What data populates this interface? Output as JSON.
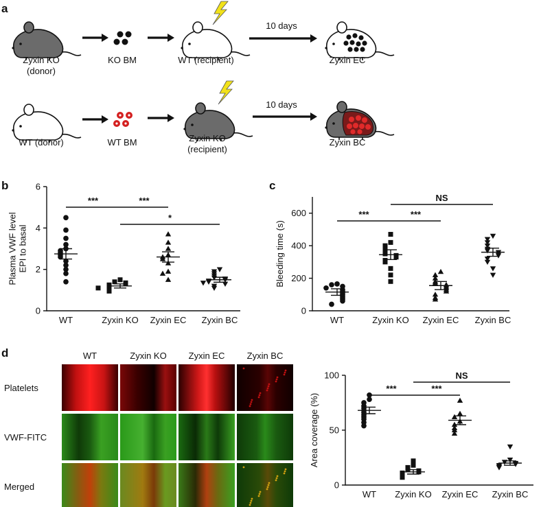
{
  "panel_a": {
    "label": "a",
    "row1": {
      "donor": [
        "Zyxin KO",
        "(donor)"
      ],
      "bm": "KO BM",
      "recipient": [
        "WT (recipient)"
      ],
      "days": "10 days",
      "result": "Zyxin EC"
    },
    "row2": {
      "donor": [
        "WT (donor)"
      ],
      "bm": "WT BM",
      "recipient": [
        "Zyxin KO",
        "(recipient)"
      ],
      "days": "10 days",
      "result": "Zyxin BC"
    },
    "colors": {
      "ko_mouse": "#6b6b6b",
      "wt_mouse": "#ffffff",
      "ko_marrow": "#111111",
      "wt_marrow": "#d42020",
      "bolt": "#f2e21a",
      "bc_fill": "#7a1a1a"
    }
  },
  "panel_b": {
    "label": "b"
  },
  "panel_c": {
    "label": "c"
  },
  "panel_d": {
    "label": "d",
    "columns": [
      "WT",
      "Zyxin KO",
      "Zyxin EC",
      "Zyxin BC"
    ],
    "rows": [
      "Platelets",
      "VWF-FITC",
      "Merged"
    ]
  },
  "chart_data": [
    {
      "type": "scatter",
      "ylabel": "Plasma VWF level\nEPI to basal",
      "categories": [
        "WT",
        "Zyxin KO",
        "Zyxin EC",
        "Zyxin BC"
      ],
      "ylim": [
        0,
        6
      ],
      "yticks": [
        0,
        2,
        4,
        6
      ],
      "markers": [
        "circle",
        "square",
        "triangle-up",
        "triangle-down"
      ],
      "means": [
        2.75,
        1.2,
        2.6,
        1.5
      ],
      "sems": [
        0.25,
        0.1,
        0.25,
        0.12
      ],
      "series": [
        {
          "values": [
            4.5,
            3.9,
            3.5,
            3.2,
            3.0,
            2.9,
            2.8,
            2.7,
            2.6,
            2.4,
            2.2,
            2.0,
            1.8,
            1.4
          ]
        },
        {
          "values": [
            1.5,
            1.4,
            1.35,
            1.3,
            1.25,
            1.2,
            1.15,
            1.1,
            1.05,
            1.0,
            0.95,
            1.1
          ]
        },
        {
          "values": [
            3.7,
            3.3,
            3.0,
            2.7,
            2.6,
            2.5,
            2.3,
            1.9,
            1.5,
            1.8
          ]
        },
        {
          "values": [
            2.0,
            1.9,
            1.8,
            1.7,
            1.6,
            1.55,
            1.5,
            1.45,
            1.4,
            1.3,
            1.2,
            1.1,
            1.35
          ]
        }
      ],
      "significance": [
        {
          "from": 0,
          "to": 1,
          "label": "***"
        },
        {
          "from": 1,
          "to": 2,
          "label": "***"
        },
        {
          "from": 1,
          "to": 3,
          "label": "*"
        }
      ]
    },
    {
      "type": "scatter",
      "ylabel": "Bleeding time (s)",
      "categories": [
        "WT",
        "Zyxin KO",
        "Zyxin EC",
        "Zyxin BC"
      ],
      "ylim": [
        0,
        700
      ],
      "yticks": [
        0,
        200,
        400,
        600
      ],
      "markers": [
        "circle",
        "square",
        "triangle-up",
        "triangle-down"
      ],
      "means": [
        115,
        345,
        155,
        360
      ],
      "sems": [
        20,
        30,
        25,
        25
      ],
      "series": [
        {
          "values": [
            165,
            160,
            150,
            140,
            130,
            120,
            110,
            100,
            90,
            80,
            70,
            60,
            40
          ]
        },
        {
          "values": [
            470,
            420,
            400,
            380,
            360,
            350,
            340,
            330,
            310,
            300,
            260,
            220,
            180
          ]
        },
        {
          "values": [
            240,
            220,
            200,
            180,
            170,
            160,
            150,
            140,
            130,
            120,
            100,
            80,
            70
          ]
        },
        {
          "values": [
            460,
            440,
            420,
            400,
            380,
            370,
            360,
            350,
            340,
            320,
            300,
            260,
            220
          ]
        }
      ],
      "significance": [
        {
          "from": 0,
          "to": 1,
          "label": "***"
        },
        {
          "from": 1,
          "to": 2,
          "label": "***"
        },
        {
          "from": 1,
          "to": 3,
          "label": "NS"
        }
      ]
    },
    {
      "type": "scatter",
      "ylabel": "Area coverage (%)",
      "categories": [
        "WT",
        "Zyxin KO",
        "Zyxin EC",
        "Zyxin BC"
      ],
      "ylim": [
        0,
        100
      ],
      "yticks": [
        0,
        50,
        100
      ],
      "markers": [
        "circle",
        "square",
        "triangle-up",
        "triangle-down"
      ],
      "means": [
        68,
        12,
        59,
        20
      ],
      "sems": [
        3,
        2,
        4,
        2
      ],
      "series": [
        {
          "values": [
            82,
            78,
            75,
            72,
            70,
            68,
            66,
            64,
            62,
            60,
            57,
            54
          ]
        },
        {
          "values": [
            22,
            18,
            16,
            14,
            13,
            12,
            11,
            10,
            9,
            8,
            7
          ]
        },
        {
          "values": [
            77,
            65,
            62,
            58,
            55,
            52,
            50,
            47
          ]
        },
        {
          "values": [
            35,
            23,
            21,
            20,
            19,
            18,
            17,
            16
          ]
        }
      ],
      "significance": [
        {
          "from": 0,
          "to": 1,
          "label": "***"
        },
        {
          "from": 1,
          "to": 2,
          "label": "***"
        },
        {
          "from": 1,
          "to": 3,
          "label": "NS"
        }
      ]
    }
  ]
}
